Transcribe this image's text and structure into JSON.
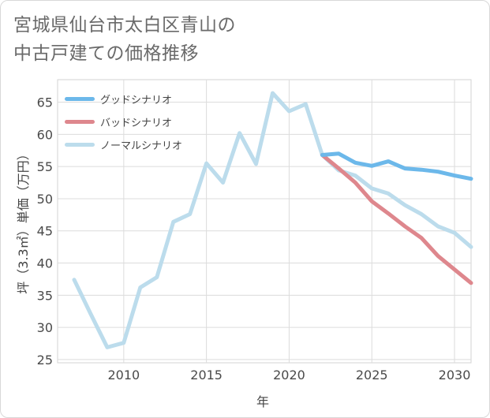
{
  "title": {
    "line1": "宮城県仙台市太白区青山の",
    "line2": "中古戸建ての価格推移"
  },
  "chart_data": {
    "type": "line",
    "xlabel": "年",
    "ylabel": "坪（3.3㎡）単価（万円）",
    "xlim": [
      2006,
      2031
    ],
    "ylim": [
      24.5,
      68.5
    ],
    "x_ticks": [
      2010,
      2015,
      2020,
      2025,
      2030
    ],
    "y_ticks": [
      25,
      30,
      35,
      40,
      45,
      50,
      55,
      60,
      65
    ],
    "grid": true,
    "legend_position": "top-left",
    "series": [
      {
        "name": "グッドシナリオ",
        "color": "#6cb8ea",
        "x": [
          2022,
          2023,
          2024,
          2025,
          2026,
          2027,
          2028,
          2029,
          2030,
          2031
        ],
        "y": [
          56.8,
          57.0,
          55.6,
          55.1,
          55.8,
          54.7,
          54.5,
          54.2,
          53.6,
          53.1
        ]
      },
      {
        "name": "バッドシナリオ",
        "color": "#de878d",
        "x": [
          2022,
          2023,
          2024,
          2025,
          2026,
          2027,
          2028,
          2029,
          2030,
          2031
        ],
        "y": [
          56.8,
          54.7,
          52.5,
          49.6,
          47.7,
          45.7,
          43.9,
          41.1,
          39.0,
          36.9
        ]
      },
      {
        "name": "ノーマルシナリオ",
        "color": "#bcdcec",
        "x": [
          2007,
          2008,
          2009,
          2010,
          2011,
          2012,
          2013,
          2014,
          2015,
          2016,
          2017,
          2018,
          2019,
          2020,
          2021,
          2022,
          2023,
          2024,
          2025,
          2026,
          2027,
          2028,
          2029,
          2030,
          2031
        ],
        "y": [
          37.4,
          32.1,
          26.9,
          27.6,
          36.2,
          37.8,
          46.4,
          47.6,
          55.5,
          52.5,
          60.2,
          55.4,
          66.4,
          63.6,
          64.7,
          56.8,
          54.4,
          53.6,
          51.6,
          50.8,
          49.0,
          47.6,
          45.7,
          44.7,
          42.5
        ]
      }
    ]
  }
}
